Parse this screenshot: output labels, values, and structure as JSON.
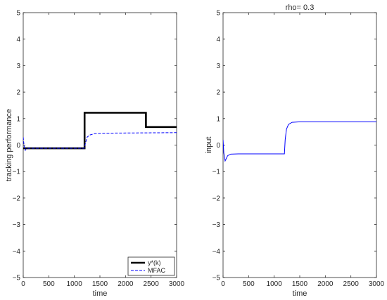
{
  "chart_data": [
    {
      "type": "line",
      "title": "",
      "xlabel": "time",
      "ylabel": "tracking performance",
      "xlim": [
        0,
        3000
      ],
      "ylim": [
        -5,
        5
      ],
      "xticks": [
        0,
        500,
        1000,
        1500,
        2000,
        2500,
        3000
      ],
      "yticks": [
        -5,
        -4,
        -3,
        -2,
        -1,
        0,
        1,
        2,
        3,
        4,
        5
      ],
      "grid": false,
      "legend_position": "bottom-right",
      "series": [
        {
          "name": "y*(k)",
          "color": "#000000",
          "style": "solid-thick",
          "points": [
            [
              0,
              -0.12
            ],
            [
              1200,
              -0.12
            ],
            [
              1200,
              1.22
            ],
            [
              2400,
              1.22
            ],
            [
              2400,
              0.68
            ],
            [
              3000,
              0.68
            ]
          ]
        },
        {
          "name": "MFAC",
          "color": "#0000ff",
          "style": "dashed",
          "points": [
            [
              0,
              0.3
            ],
            [
              10,
              0.1
            ],
            [
              25,
              -0.15
            ],
            [
              40,
              -0.2
            ],
            [
              60,
              -0.13
            ],
            [
              100,
              -0.12
            ],
            [
              1195,
              -0.12
            ],
            [
              1215,
              0.05
            ],
            [
              1250,
              0.3
            ],
            [
              1300,
              0.38
            ],
            [
              1400,
              0.43
            ],
            [
              1500,
              0.44
            ],
            [
              1600,
              0.45
            ],
            [
              3000,
              0.47
            ]
          ]
        }
      ]
    },
    {
      "type": "line",
      "title": "rho= 0.3",
      "xlabel": "time",
      "ylabel": "input",
      "xlim": [
        0,
        3000
      ],
      "ylim": [
        -5,
        5
      ],
      "xticks": [
        0,
        500,
        1000,
        1500,
        2000,
        2500,
        3000
      ],
      "yticks": [
        -5,
        -4,
        -3,
        -2,
        -1,
        0,
        1,
        2,
        3,
        4,
        5
      ],
      "grid": false,
      "series": [
        {
          "color": "#0000ff",
          "style": "solid",
          "points": [
            [
              0,
              0.2
            ],
            [
              15,
              -0.3
            ],
            [
              40,
              -0.6
            ],
            [
              60,
              -0.52
            ],
            [
              90,
              -0.4
            ],
            [
              150,
              -0.34
            ],
            [
              300,
              -0.33
            ],
            [
              1200,
              -0.33
            ],
            [
              1215,
              0.2
            ],
            [
              1240,
              0.6
            ],
            [
              1280,
              0.78
            ],
            [
              1350,
              0.86
            ],
            [
              1500,
              0.88
            ],
            [
              2000,
              0.88
            ],
            [
              3000,
              0.88
            ]
          ]
        }
      ]
    }
  ]
}
